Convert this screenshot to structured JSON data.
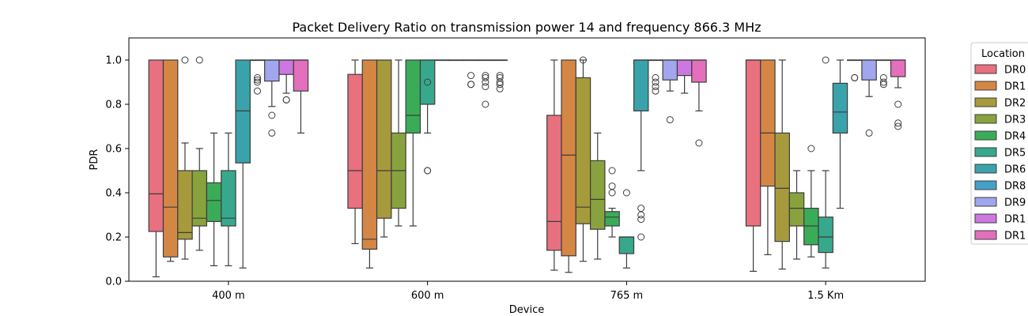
{
  "chart_data": {
    "type": "box",
    "title": "Packet Delivery Ratio on transmission power 14 and frequency 866.3 MHz",
    "xlabel": "Device",
    "ylabel": "PDR",
    "ylim": [
      0,
      1.1
    ],
    "yticks": [
      "0.0",
      "0.2",
      "0.4",
      "0.6",
      "0.8",
      "1.0"
    ],
    "categories": [
      "400 m",
      "600 m",
      "765 m",
      "1.5 Km"
    ],
    "legend": {
      "title": "Location",
      "placement": "outside-right",
      "entries": [
        "DR0",
        "DR1",
        "DR2",
        "DR3",
        "DR4",
        "DR5",
        "DR6",
        "DR8",
        "DR9",
        "DR1",
        "DR1"
      ]
    },
    "series": [
      {
        "name": "DR0",
        "color": "#e8707f",
        "boxes": [
          {
            "low": 0.02,
            "q1": 0.225,
            "median": 0.395,
            "q3": 1.0,
            "high": 1.0,
            "outliers": []
          },
          {
            "low": 0.17,
            "q1": 0.33,
            "median": 0.5,
            "q3": 0.935,
            "high": 1.0,
            "outliers": []
          },
          {
            "low": 0.05,
            "q1": 0.14,
            "median": 0.27,
            "q3": 0.75,
            "high": 1.0,
            "outliers": []
          },
          {
            "low": 0.045,
            "q1": 0.25,
            "median": 1.0,
            "q3": 1.0,
            "high": 1.0,
            "outliers": []
          }
        ]
      },
      {
        "name": "DR1",
        "color": "#d48745",
        "boxes": [
          {
            "low": 0.09,
            "q1": 0.11,
            "median": 0.335,
            "q3": 1.0,
            "high": 1.0,
            "outliers": []
          },
          {
            "low": 0.06,
            "q1": 0.145,
            "median": 0.19,
            "q3": 1.0,
            "high": 1.0,
            "outliers": []
          },
          {
            "low": 0.04,
            "q1": 0.115,
            "median": 0.57,
            "q3": 1.0,
            "high": 1.0,
            "outliers": []
          },
          {
            "low": 0.12,
            "q1": 0.43,
            "median": 0.67,
            "q3": 1.0,
            "high": 1.0,
            "outliers": []
          }
        ]
      },
      {
        "name": "DR2",
        "color": "#a69a3c",
        "boxes": [
          {
            "low": 0.1,
            "q1": 0.19,
            "median": 0.22,
            "q3": 0.5,
            "high": 0.625,
            "outliers": [
              1.0
            ]
          },
          {
            "low": 0.2,
            "q1": 0.285,
            "median": 0.5,
            "q3": 1.0,
            "high": 1.0,
            "outliers": []
          },
          {
            "low": 0.09,
            "q1": 0.26,
            "median": 0.335,
            "q3": 0.92,
            "high": 1.0,
            "outliers": [
              1.0
            ]
          },
          {
            "low": 0.055,
            "q1": 0.18,
            "median": 0.42,
            "q3": 0.67,
            "high": 1.0,
            "outliers": []
          }
        ]
      },
      {
        "name": "DR3",
        "color": "#88a23e",
        "boxes": [
          {
            "low": 0.14,
            "q1": 0.25,
            "median": 0.285,
            "q3": 0.5,
            "high": 0.6,
            "outliers": [
              1.0
            ]
          },
          {
            "low": 0.25,
            "q1": 0.33,
            "median": 0.5,
            "q3": 0.67,
            "high": 1.0,
            "outliers": []
          },
          {
            "low": 0.1,
            "q1": 0.235,
            "median": 0.37,
            "q3": 0.545,
            "high": 0.67,
            "outliers": []
          },
          {
            "low": 0.1,
            "q1": 0.25,
            "median": 0.33,
            "q3": 0.4,
            "high": 0.5,
            "outliers": []
          }
        ]
      },
      {
        "name": "DR4",
        "color": "#3aac58",
        "boxes": [
          {
            "low": 0.07,
            "q1": 0.27,
            "median": 0.365,
            "q3": 0.445,
            "high": 0.67,
            "outliers": []
          },
          {
            "low": 0.25,
            "q1": 0.67,
            "median": 0.75,
            "q3": 1.0,
            "high": 1.0,
            "outliers": []
          },
          {
            "low": 0.2,
            "q1": 0.25,
            "median": 0.29,
            "q3": 0.315,
            "high": 0.33,
            "outliers": [
              0.5,
              0.43,
              0.4
            ]
          },
          {
            "low": 0.11,
            "q1": 0.165,
            "median": 0.25,
            "q3": 0.33,
            "high": 0.5,
            "outliers": [
              0.6
            ]
          }
        ]
      },
      {
        "name": "DR5",
        "color": "#38a88c",
        "boxes": [
          {
            "low": 0.07,
            "q1": 0.25,
            "median": 0.285,
            "q3": 0.5,
            "high": 0.67,
            "outliers": []
          },
          {
            "low": 0.67,
            "q1": 0.8,
            "median": 1.0,
            "q3": 1.0,
            "high": 1.0,
            "outliers": [
              0.5,
              0.5,
              0.9
            ]
          },
          {
            "low": 0.06,
            "q1": 0.125,
            "median": 0.2,
            "q3": 0.2,
            "high": 0.2,
            "outliers": [
              0.4
            ]
          },
          {
            "low": 0.06,
            "q1": 0.13,
            "median": 0.2,
            "q3": 0.29,
            "high": 0.5,
            "outliers": [
              1.0
            ]
          }
        ]
      },
      {
        "name": "DR6",
        "color": "#3aa2aa",
        "boxes": [
          {
            "low": 0.06,
            "q1": 0.535,
            "median": 0.77,
            "q3": 1.0,
            "high": 1.0,
            "outliers": []
          },
          {
            "low": 1.0,
            "q1": 1.0,
            "median": 1.0,
            "q3": 1.0,
            "high": 1.0,
            "outliers": []
          },
          {
            "low": 0.5,
            "q1": 0.77,
            "median": 1.0,
            "q3": 1.0,
            "high": 1.0,
            "outliers": [
              0.33,
              0.3,
              0.28,
              0.2
            ]
          },
          {
            "low": 0.33,
            "q1": 0.67,
            "median": 0.765,
            "q3": 0.895,
            "high": 1.0,
            "outliers": []
          }
        ]
      },
      {
        "name": "DR8",
        "color": "#45a0c8",
        "boxes": [
          {
            "low": 1.0,
            "q1": 1.0,
            "median": 1.0,
            "q3": 1.0,
            "high": 1.0,
            "outliers": [
              0.92,
              0.91,
              0.9,
              0.86
            ]
          },
          {
            "low": 1.0,
            "q1": 1.0,
            "median": 1.0,
            "q3": 1.0,
            "high": 1.0,
            "outliers": []
          },
          {
            "low": 1.0,
            "q1": 1.0,
            "median": 1.0,
            "q3": 1.0,
            "high": 1.0,
            "outliers": [
              0.92,
              0.9,
              0.88,
              0.86
            ]
          },
          {
            "low": 1.0,
            "q1": 1.0,
            "median": 1.0,
            "q3": 1.0,
            "high": 1.0,
            "outliers": [
              0.92,
              0.92
            ]
          }
        ]
      },
      {
        "name": "DR9",
        "color": "#a1a6ee",
        "boxes": [
          {
            "low": 0.79,
            "q1": 0.905,
            "median": 1.0,
            "q3": 1.0,
            "high": 1.0,
            "outliers": [
              0.75,
              0.67
            ]
          },
          {
            "low": 1.0,
            "q1": 1.0,
            "median": 1.0,
            "q3": 1.0,
            "high": 1.0,
            "outliers": [
              0.93,
              0.89,
              0.89
            ]
          },
          {
            "low": 0.86,
            "q1": 0.91,
            "median": 1.0,
            "q3": 1.0,
            "high": 1.0,
            "outliers": [
              0.73
            ]
          },
          {
            "low": 0.835,
            "q1": 0.91,
            "median": 1.0,
            "q3": 1.0,
            "high": 1.0,
            "outliers": [
              0.67
            ]
          }
        ]
      },
      {
        "name": "DR1",
        "color": "#cc78e0",
        "boxes": [
          {
            "low": 0.85,
            "q1": 0.935,
            "median": 1.0,
            "q3": 1.0,
            "high": 1.0,
            "outliers": [
              0.82,
              0.82
            ]
          },
          {
            "low": 1.0,
            "q1": 1.0,
            "median": 1.0,
            "q3": 1.0,
            "high": 1.0,
            "outliers": [
              0.93,
              0.92,
              0.9,
              0.88,
              0.8
            ]
          },
          {
            "low": 0.85,
            "q1": 0.93,
            "median": 1.0,
            "q3": 1.0,
            "high": 1.0,
            "outliers": []
          },
          {
            "low": 1.0,
            "q1": 1.0,
            "median": 1.0,
            "q3": 1.0,
            "high": 1.0,
            "outliers": [
              0.92,
              0.9,
              0.89
            ]
          }
        ]
      },
      {
        "name": "DR1",
        "color": "#e36fbd",
        "boxes": [
          {
            "low": 0.67,
            "q1": 0.86,
            "median": 1.0,
            "q3": 1.0,
            "high": 1.0,
            "outliers": []
          },
          {
            "low": 1.0,
            "q1": 1.0,
            "median": 1.0,
            "q3": 1.0,
            "high": 1.0,
            "outliers": [
              0.93,
              0.92,
              0.9,
              0.89,
              0.87
            ]
          },
          {
            "low": 0.77,
            "q1": 0.9,
            "median": 1.0,
            "q3": 1.0,
            "high": 1.0,
            "outliers": [
              0.625
            ]
          },
          {
            "low": 0.875,
            "q1": 0.925,
            "median": 1.0,
            "q3": 1.0,
            "high": 1.0,
            "outliers": [
              0.8,
              0.715,
              0.7
            ]
          }
        ]
      }
    ]
  }
}
